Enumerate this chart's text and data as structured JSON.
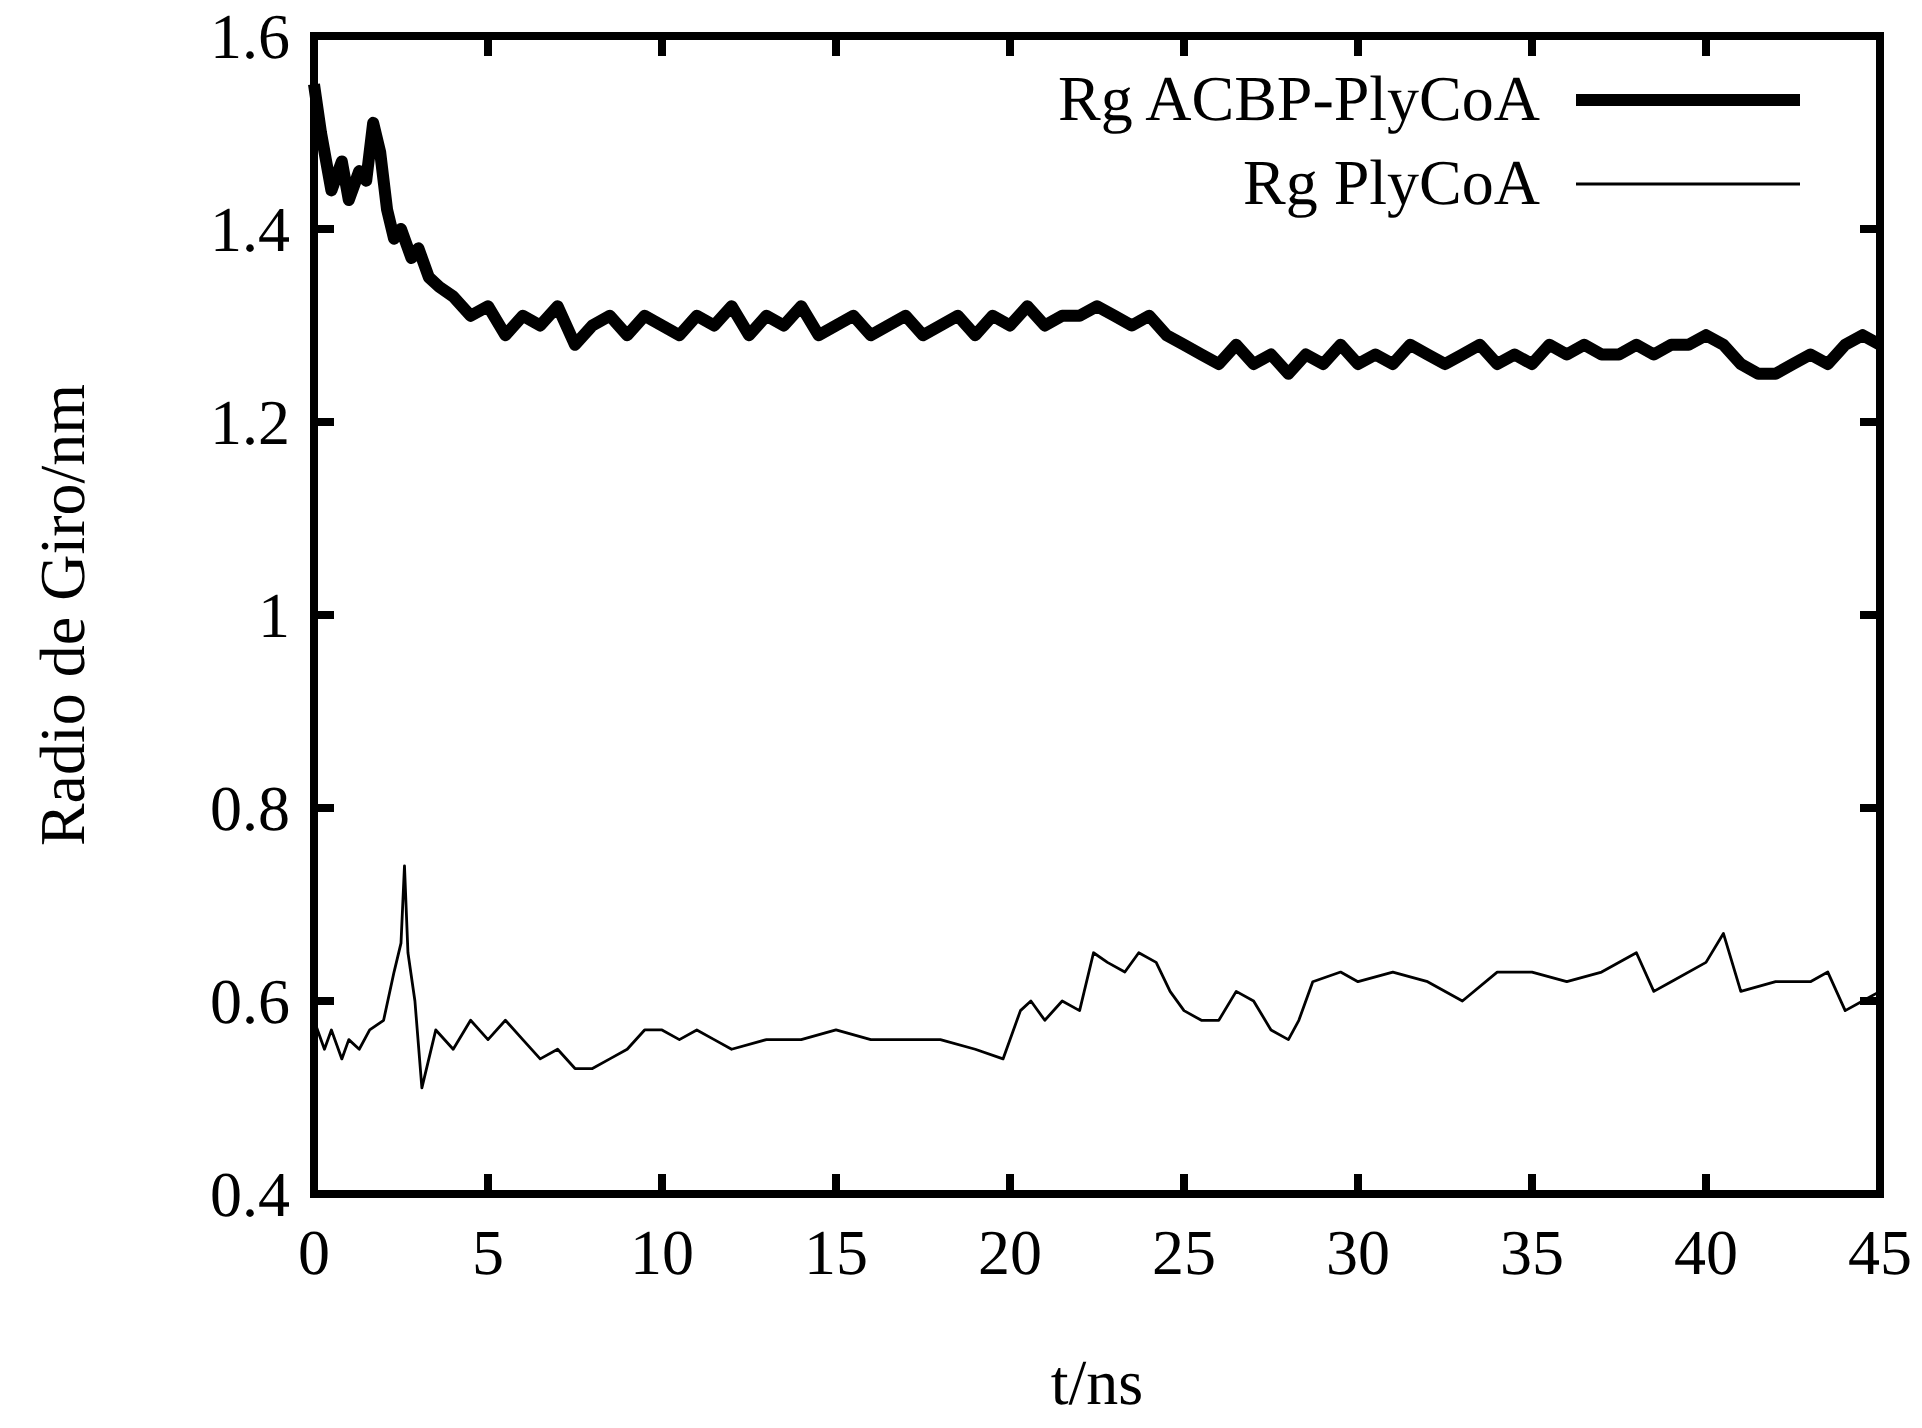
{
  "chart_data": {
    "type": "line",
    "xlabel": "t/ns",
    "ylabel": "Radio de Giro/nm",
    "xlim": [
      0,
      45
    ],
    "ylim": [
      0.4,
      1.6
    ],
    "xticks": [
      0,
      5,
      10,
      15,
      20,
      25,
      30,
      35,
      40,
      45
    ],
    "yticks": [
      0.4,
      0.6,
      0.8,
      1,
      1.2,
      1.4,
      1.6
    ],
    "legend": "top right",
    "grid": false,
    "line_style": "solid",
    "series": [
      {
        "name": "Rg ACBP-PlyCoA",
        "color": "#000000",
        "x": [
          0,
          0.2,
          0.5,
          0.8,
          1,
          1.3,
          1.5,
          1.7,
          1.9,
          2.1,
          2.3,
          2.5,
          2.8,
          3,
          3.3,
          3.6,
          4,
          4.5,
          5,
          5.5,
          6,
          6.5,
          7,
          7.5,
          8,
          8.5,
          9,
          9.5,
          10,
          10.5,
          11,
          11.5,
          12,
          12.5,
          13,
          13.5,
          14,
          14.5,
          15,
          15.5,
          16,
          16.5,
          17,
          17.5,
          18,
          18.5,
          19,
          19.5,
          20,
          20.5,
          21,
          21.5,
          22,
          22.5,
          23,
          23.5,
          24,
          24.5,
          25,
          25.5,
          26,
          26.5,
          27,
          27.5,
          28,
          28.5,
          29,
          29.5,
          30,
          30.5,
          31,
          31.5,
          32,
          32.5,
          33,
          33.5,
          34,
          34.5,
          35,
          35.5,
          36,
          36.5,
          37,
          37.5,
          38,
          38.5,
          39,
          39.5,
          40,
          40.5,
          41,
          41.5,
          42,
          42.5,
          43,
          43.5,
          44,
          44.5,
          45
        ],
        "values": [
          1.55,
          1.5,
          1.44,
          1.47,
          1.43,
          1.46,
          1.45,
          1.51,
          1.48,
          1.42,
          1.39,
          1.4,
          1.37,
          1.38,
          1.35,
          1.34,
          1.33,
          1.31,
          1.32,
          1.29,
          1.31,
          1.3,
          1.32,
          1.28,
          1.3,
          1.31,
          1.29,
          1.31,
          1.3,
          1.29,
          1.31,
          1.3,
          1.32,
          1.29,
          1.31,
          1.3,
          1.32,
          1.29,
          1.3,
          1.31,
          1.29,
          1.3,
          1.31,
          1.29,
          1.3,
          1.31,
          1.29,
          1.31,
          1.3,
          1.32,
          1.3,
          1.31,
          1.31,
          1.32,
          1.31,
          1.3,
          1.31,
          1.29,
          1.28,
          1.27,
          1.26,
          1.28,
          1.26,
          1.27,
          1.25,
          1.27,
          1.26,
          1.28,
          1.26,
          1.27,
          1.26,
          1.28,
          1.27,
          1.26,
          1.27,
          1.28,
          1.26,
          1.27,
          1.26,
          1.28,
          1.27,
          1.28,
          1.27,
          1.27,
          1.28,
          1.27,
          1.28,
          1.28,
          1.29,
          1.28,
          1.26,
          1.25,
          1.25,
          1.26,
          1.27,
          1.26,
          1.28,
          1.29,
          1.28
        ]
      },
      {
        "name": "Rg PlyCoA",
        "color": "#000000",
        "x": [
          0,
          0.3,
          0.5,
          0.8,
          1,
          1.3,
          1.6,
          2,
          2.3,
          2.5,
          2.6,
          2.7,
          2.9,
          3.1,
          3.5,
          4,
          4.5,
          5,
          5.5,
          6,
          6.5,
          7,
          7.5,
          8,
          8.5,
          9,
          9.5,
          10,
          10.5,
          11,
          11.5,
          12,
          13,
          14,
          15,
          16,
          17,
          18,
          19,
          19.8,
          20.3,
          20.6,
          21,
          21.5,
          22,
          22.4,
          22.8,
          23.3,
          23.7,
          24.2,
          24.6,
          25,
          25.5,
          26,
          26.5,
          27,
          27.5,
          28,
          28.3,
          28.7,
          29.5,
          30,
          31,
          32,
          33,
          34,
          35,
          36,
          37,
          38,
          38.5,
          39,
          40,
          40.5,
          41,
          42,
          43,
          43.5,
          44,
          44.5,
          45
        ],
        "values": [
          0.58,
          0.55,
          0.57,
          0.54,
          0.56,
          0.55,
          0.57,
          0.58,
          0.63,
          0.66,
          0.74,
          0.65,
          0.6,
          0.51,
          0.57,
          0.55,
          0.58,
          0.56,
          0.58,
          0.56,
          0.54,
          0.55,
          0.53,
          0.53,
          0.54,
          0.55,
          0.57,
          0.57,
          0.56,
          0.57,
          0.56,
          0.55,
          0.56,
          0.56,
          0.57,
          0.56,
          0.56,
          0.56,
          0.55,
          0.54,
          0.59,
          0.6,
          0.58,
          0.6,
          0.59,
          0.65,
          0.64,
          0.63,
          0.65,
          0.64,
          0.61,
          0.59,
          0.58,
          0.58,
          0.61,
          0.6,
          0.57,
          0.56,
          0.58,
          0.62,
          0.63,
          0.62,
          0.63,
          0.62,
          0.6,
          0.63,
          0.63,
          0.62,
          0.63,
          0.65,
          0.61,
          0.62,
          0.64,
          0.67,
          0.61,
          0.62,
          0.62,
          0.63,
          0.59,
          0.6,
          0.61
        ]
      }
    ]
  }
}
